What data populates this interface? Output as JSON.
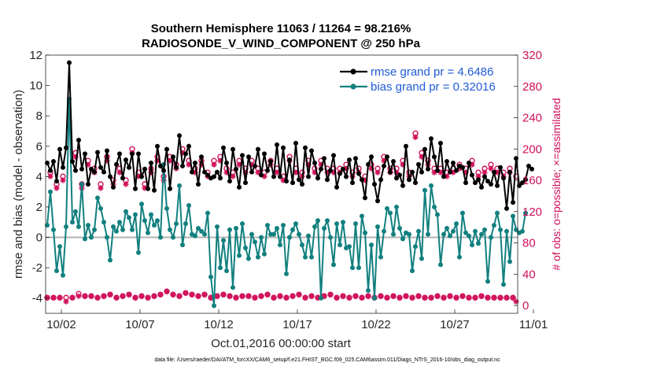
{
  "chart_data": {
    "type": "line",
    "title": "Southern Hemisphere 11063 / 11264 = 98.216%",
    "subtitle": "RADIOSONDE_V_WIND_COMPONENT @ 250 hPa",
    "xlabel": "Oct.01,2016 00:00:00 start",
    "ylabel_left": "rmse and bias (model - observation)",
    "ylabel_right": "# of obs: o=possible; ×=assimilated",
    "x_ticks": [
      "10/02",
      "10/07",
      "10/12",
      "10/17",
      "10/22",
      "10/27",
      "11/01"
    ],
    "y_ticks_left": [
      "-4",
      "-2",
      "0",
      "2",
      "4",
      "6",
      "8",
      "10",
      "12"
    ],
    "y_ticks_right": [
      "0",
      "40",
      "80",
      "120",
      "160",
      "200",
      "240",
      "280",
      "320"
    ],
    "ylim_left": [
      -5,
      12
    ],
    "ylim_right": [
      -10,
      320
    ],
    "xlim_days": [
      0,
      30
    ],
    "footnote": "data file: /Users/raeder/DAI/ATM_forcXX/CAM6_setup/f.e21.FHIST_BGC.f09_025.CAM6assim.011/Diags_NTrS_2016-10/obs_diag_output.nc",
    "colors": {
      "rmse": "#000000",
      "bias": "#11807f",
      "obs": "#d0105a",
      "zero_line": "#b3b3b3",
      "legend_text": "#1f5bd6"
    },
    "series": [
      {
        "name": "rmse grand pr = 4.6486",
        "marker": "filled-circle",
        "axis": "left",
        "values": [
          4.9,
          4.4,
          5.0,
          3.7,
          5.8,
          4.6,
          5.9,
          11.5,
          5.0,
          4.4,
          6.4,
          4.5,
          5.5,
          3.5,
          4.5,
          4.3,
          5.6,
          4.6,
          4.3,
          5.7,
          4.0,
          3.3,
          4.8,
          5.5,
          3.9,
          5.1,
          4.6,
          5.5,
          3.2,
          5.5,
          4.0,
          4.5,
          3.2,
          4.9,
          3.1,
          6.0,
          4.7,
          4.4,
          5.8,
          3.2,
          5.3,
          4.6,
          6.7,
          4.7,
          5.5,
          6.0,
          4.3,
          4.9,
          3.5,
          5.3,
          4.3,
          4.1,
          3.9,
          4.0,
          4.3,
          3.9,
          5.9,
          4.9,
          3.7,
          5.8,
          4.5,
          3.3,
          5.4,
          3.6,
          5.3,
          4.3,
          4.7,
          5.8,
          4.1,
          5.5,
          4.4,
          5.0,
          4.0,
          6.1,
          4.0,
          5.9,
          3.7,
          5.1,
          3.6,
          6.2,
          3.8,
          3.5,
          5.9,
          4.0,
          5.7,
          4.9,
          3.9,
          4.5,
          5.2,
          3.8,
          4.4,
          5.4,
          3.3,
          4.2,
          4.5,
          4.0,
          5.1,
          3.6,
          5.2,
          4.2,
          3.8,
          2.6,
          4.8,
          5.3,
          3.5,
          2.4,
          3.8,
          4.7,
          5.3,
          4.3,
          5.0,
          3.9,
          4.1,
          3.4,
          6.0,
          3.8,
          4.3,
          3.6,
          4.8,
          4.3,
          5.8,
          4.5,
          6.5,
          5.3,
          4.4,
          6.2,
          4.0,
          5.0,
          4.3,
          4.9,
          4.4,
          4.7,
          4.6,
          3.6,
          4.9,
          4.1,
          3.6,
          3.8,
          3.3,
          4.0,
          3.7,
          3.5,
          4.3,
          3.4,
          4.6,
          3.9,
          1.9,
          4.3,
          2.3,
          5.2,
          3.4,
          3.6,
          3.8,
          4.7,
          4.5
        ]
      },
      {
        "name": "bias grand pr = 0.32016",
        "marker": "filled-circle",
        "axis": "left",
        "values": [
          0.8,
          3.0,
          0.5,
          -2.2,
          -0.6,
          -2.5,
          0.7,
          9.1,
          1.0,
          1.7,
          0.7,
          3.5,
          -0.1,
          0.8,
          0.0,
          0.5,
          2.6,
          1.9,
          1.0,
          0.0,
          -1.5,
          0.7,
          0.4,
          1.0,
          0.5,
          1.7,
          1.3,
          0.5,
          1.5,
          -1.0,
          2.2,
          1.1,
          0.3,
          1.5,
          0.8,
          1.1,
          0.0,
          4.8,
          1.9,
          0.5,
          0.0,
          0.9,
          3.4,
          -0.5,
          0.9,
          2.1,
          0.2,
          0.1,
          0.6,
          0.4,
          0.2,
          1.6,
          -2.6,
          -4.5,
          0.7,
          -2.0,
          -0.2,
          -2.2,
          0.5,
          -3.3,
          0.6,
          -1.2,
          0.9,
          -0.7,
          -1.4,
          0.2,
          -0.3,
          -1.3,
          0.0,
          -1.1,
          0.8,
          0.2,
          0.2,
          0.6,
          -0.5,
          0.8,
          -2.4,
          0.0,
          0.5,
          0.9,
          0.2,
          -0.5,
          -1.3,
          0.1,
          -1.3,
          0.7,
          1.1,
          -4.0,
          0.6,
          1.1,
          0.0,
          -1.8,
          0.9,
          -0.5,
          1.0,
          -0.7,
          -0.6,
          -2.0,
          0.9,
          -2.0,
          1.4,
          0.3,
          -3.5,
          -0.5,
          -4.0,
          0.7,
          -1.3,
          0.4,
          1.9,
          1.6,
          0.2,
          2.0,
          0.6,
          -0.1,
          0.3,
          0.2,
          -2.2,
          -0.6,
          0.4,
          -1.4,
          3.1,
          0.2,
          3.4,
          2.0,
          1.5,
          -1.8,
          0.2,
          0.6,
          0.1,
          0.4,
          0.9,
          -1.3,
          1.6,
          0.3,
          0.1,
          -0.5,
          0.4,
          -0.4,
          0.2,
          0.5,
          -2.9,
          0.0,
          0.8,
          1.6,
          0.5,
          -3.1,
          0.4,
          -1.6,
          1.4,
          0.5,
          0.3,
          0.4,
          1.6
        ]
      },
      {
        "name": "obs possible",
        "marker": "open-circle",
        "axis": "right",
        "values": [
          10,
          170,
          10,
          155,
          10,
          165,
          10,
          235,
          10,
          195,
          15,
          155,
          12,
          185,
          12,
          175,
          10,
          155,
          12,
          190,
          14,
          160,
          10,
          175,
          12,
          160,
          14,
          200,
          10,
          170,
          12,
          155,
          10,
          175,
          12,
          190,
          14,
          165,
          18,
          190,
          14,
          180,
          12,
          200,
          16,
          185,
          14,
          175,
          12,
          185,
          14,
          170,
          10,
          185,
          12,
          190,
          14,
          175,
          12,
          170,
          10,
          185,
          12,
          175,
          12,
          185,
          10,
          175,
          12,
          170,
          14,
          185,
          10,
          175,
          12,
          165,
          10,
          190,
          12,
          175,
          14,
          170,
          10,
          185,
          12,
          175,
          10,
          185,
          12,
          175,
          14,
          175,
          10,
          175,
          12,
          180,
          10,
          170,
          12,
          175,
          10,
          165,
          12,
          180,
          10,
          175,
          12,
          190,
          10,
          175,
          12,
          175,
          10,
          185,
          12,
          170,
          10,
          220,
          12,
          195,
          10,
          185,
          10,
          175,
          12,
          175,
          10,
          170,
          12,
          175,
          10,
          180,
          12,
          175,
          10,
          185,
          10,
          170,
          12,
          175,
          10,
          180,
          10,
          175,
          10,
          170,
          10,
          175,
          10,
          165
        ]
      },
      {
        "name": "obs assimilated",
        "marker": "asterisk",
        "axis": "right",
        "values": [
          10,
          165,
          10,
          150,
          10,
          160,
          5,
          230,
          10,
          190,
          12,
          150,
          12,
          180,
          12,
          170,
          10,
          150,
          12,
          185,
          14,
          155,
          10,
          170,
          12,
          155,
          14,
          195,
          10,
          165,
          12,
          150,
          10,
          170,
          12,
          185,
          14,
          160,
          18,
          185,
          14,
          175,
          12,
          195,
          16,
          180,
          14,
          170,
          12,
          180,
          14,
          165,
          10,
          180,
          12,
          185,
          14,
          170,
          12,
          165,
          10,
          180,
          12,
          170,
          12,
          180,
          10,
          170,
          12,
          165,
          14,
          180,
          10,
          170,
          12,
          160,
          10,
          185,
          12,
          170,
          14,
          165,
          10,
          180,
          12,
          170,
          10,
          180,
          12,
          170,
          14,
          170,
          10,
          170,
          12,
          175,
          10,
          165,
          12,
          170,
          10,
          160,
          12,
          175,
          10,
          170,
          12,
          185,
          10,
          170,
          12,
          170,
          10,
          180,
          12,
          165,
          10,
          215,
          12,
          190,
          10,
          180,
          10,
          170,
          12,
          170,
          10,
          165,
          12,
          170,
          10,
          175,
          12,
          170,
          10,
          180,
          10,
          165,
          12,
          170,
          10,
          175,
          10,
          170,
          10,
          165,
          10,
          170,
          10,
          5
        ]
      }
    ]
  }
}
